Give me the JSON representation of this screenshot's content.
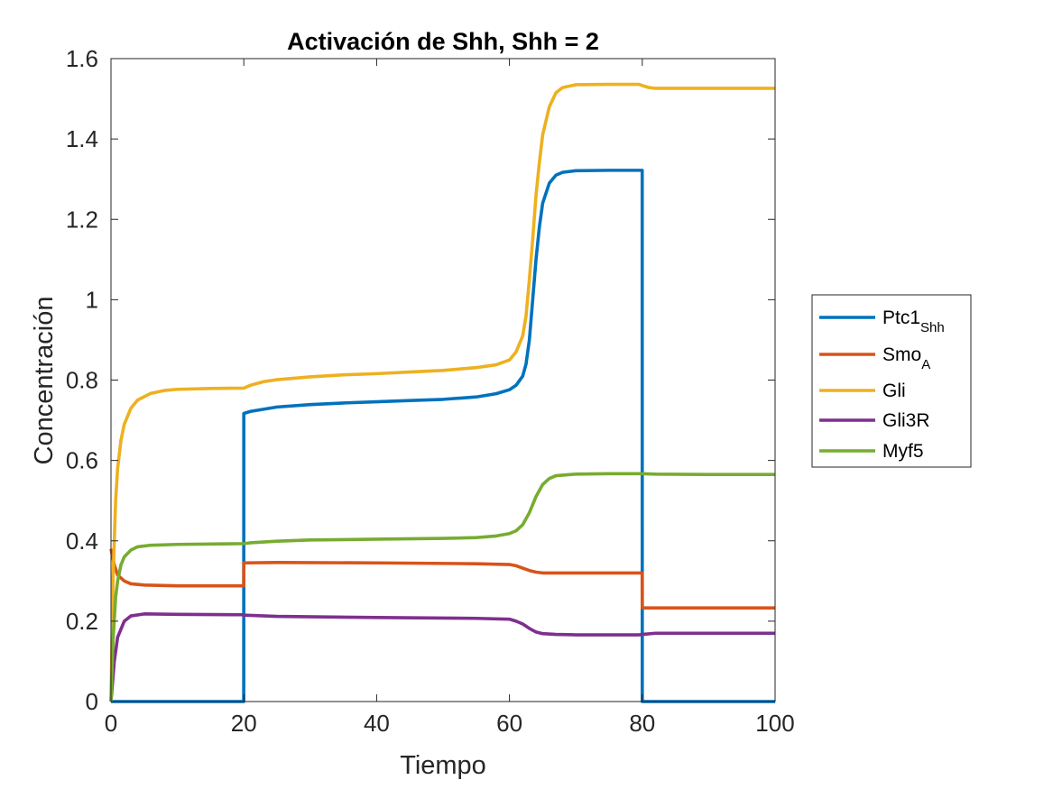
{
  "chart_data": {
    "type": "line",
    "title": "Activación de Shh, Shh = 2",
    "xlabel": "Tiempo",
    "ylabel": "Concentración",
    "xlim": [
      0,
      100
    ],
    "ylim": [
      0,
      1.6
    ],
    "xticks": [
      0,
      20,
      40,
      60,
      80,
      100
    ],
    "xtick_labels": [
      "0",
      "20",
      "40",
      "60",
      "80",
      "100"
    ],
    "yticks": [
      0,
      0.2,
      0.4,
      0.6,
      0.8,
      1,
      1.2,
      1.4,
      1.6
    ],
    "ytick_labels": [
      "0",
      "0.2",
      "0.4",
      "0.6",
      "0.8",
      "1",
      "1.2",
      "1.4",
      "1.6"
    ],
    "grid": false,
    "legend_position": "right",
    "series": [
      {
        "name": "Ptc1",
        "name_sub": "Shh",
        "color": "#0072BD",
        "points": [
          [
            0,
            0
          ],
          [
            19.99,
            0
          ],
          [
            20,
            0.717
          ],
          [
            21,
            0.722
          ],
          [
            25,
            0.733
          ],
          [
            30,
            0.739
          ],
          [
            35,
            0.743
          ],
          [
            40,
            0.746
          ],
          [
            45,
            0.749
          ],
          [
            50,
            0.752
          ],
          [
            55,
            0.758
          ],
          [
            58,
            0.766
          ],
          [
            60,
            0.776
          ],
          [
            61,
            0.787
          ],
          [
            62,
            0.81
          ],
          [
            62.5,
            0.84
          ],
          [
            63,
            0.9
          ],
          [
            63.5,
            1.0
          ],
          [
            64,
            1.1
          ],
          [
            64.5,
            1.18
          ],
          [
            65,
            1.24
          ],
          [
            66,
            1.29
          ],
          [
            67,
            1.31
          ],
          [
            68,
            1.317
          ],
          [
            70,
            1.321
          ],
          [
            75,
            1.322
          ],
          [
            79.99,
            1.322
          ],
          [
            80,
            0
          ],
          [
            100,
            0
          ]
        ]
      },
      {
        "name": "Smo",
        "name_sub": "A",
        "color": "#D95319",
        "points": [
          [
            0,
            0.38
          ],
          [
            0.5,
            0.34
          ],
          [
            1,
            0.315
          ],
          [
            2,
            0.3
          ],
          [
            3,
            0.293
          ],
          [
            5,
            0.29
          ],
          [
            10,
            0.288
          ],
          [
            19.99,
            0.288
          ],
          [
            20,
            0.345
          ],
          [
            25,
            0.346
          ],
          [
            40,
            0.345
          ],
          [
            55,
            0.343
          ],
          [
            60,
            0.341
          ],
          [
            61,
            0.338
          ],
          [
            62,
            0.332
          ],
          [
            63,
            0.326
          ],
          [
            64,
            0.322
          ],
          [
            65,
            0.32
          ],
          [
            70,
            0.32
          ],
          [
            79.99,
            0.32
          ],
          [
            80,
            0.233
          ],
          [
            90,
            0.233
          ],
          [
            100,
            0.233
          ]
        ]
      },
      {
        "name": "Gli",
        "name_sub": "",
        "color": "#EDB120",
        "points": [
          [
            0,
            0
          ],
          [
            0.3,
            0.3
          ],
          [
            0.7,
            0.5
          ],
          [
            1,
            0.58
          ],
          [
            1.5,
            0.65
          ],
          [
            2,
            0.69
          ],
          [
            3,
            0.73
          ],
          [
            4,
            0.75
          ],
          [
            6,
            0.767
          ],
          [
            8,
            0.774
          ],
          [
            10,
            0.777
          ],
          [
            15,
            0.779
          ],
          [
            19.99,
            0.78
          ],
          [
            20,
            0.78
          ],
          [
            21,
            0.787
          ],
          [
            23,
            0.796
          ],
          [
            25,
            0.801
          ],
          [
            30,
            0.808
          ],
          [
            35,
            0.813
          ],
          [
            40,
            0.816
          ],
          [
            45,
            0.82
          ],
          [
            50,
            0.824
          ],
          [
            55,
            0.831
          ],
          [
            58,
            0.838
          ],
          [
            60,
            0.85
          ],
          [
            61,
            0.87
          ],
          [
            62,
            0.91
          ],
          [
            62.5,
            0.96
          ],
          [
            63,
            1.05
          ],
          [
            63.5,
            1.15
          ],
          [
            64,
            1.26
          ],
          [
            64.5,
            1.34
          ],
          [
            65,
            1.41
          ],
          [
            66,
            1.48
          ],
          [
            67,
            1.515
          ],
          [
            68,
            1.528
          ],
          [
            70,
            1.535
          ],
          [
            75,
            1.536
          ],
          [
            79.5,
            1.536
          ],
          [
            80,
            1.533
          ],
          [
            81,
            1.528
          ],
          [
            82,
            1.526
          ],
          [
            90,
            1.526
          ],
          [
            100,
            1.526
          ]
        ]
      },
      {
        "name": "Gli3R",
        "name_sub": "",
        "color": "#7E2F8E",
        "points": [
          [
            0,
            0
          ],
          [
            0.5,
            0.1
          ],
          [
            1,
            0.16
          ],
          [
            2,
            0.2
          ],
          [
            3,
            0.213
          ],
          [
            5,
            0.218
          ],
          [
            10,
            0.217
          ],
          [
            19.99,
            0.216
          ],
          [
            20,
            0.215
          ],
          [
            25,
            0.212
          ],
          [
            40,
            0.209
          ],
          [
            55,
            0.207
          ],
          [
            60,
            0.205
          ],
          [
            61,
            0.2
          ],
          [
            62,
            0.193
          ],
          [
            63,
            0.182
          ],
          [
            64,
            0.173
          ],
          [
            65,
            0.169
          ],
          [
            67,
            0.167
          ],
          [
            70,
            0.166
          ],
          [
            79.5,
            0.166
          ],
          [
            80,
            0.167
          ],
          [
            82,
            0.17
          ],
          [
            90,
            0.17
          ],
          [
            100,
            0.17
          ]
        ]
      },
      {
        "name": "Myf5",
        "name_sub": "",
        "color": "#77AC30",
        "points": [
          [
            0,
            0
          ],
          [
            0.3,
            0.15
          ],
          [
            0.7,
            0.26
          ],
          [
            1,
            0.3
          ],
          [
            1.5,
            0.34
          ],
          [
            2,
            0.36
          ],
          [
            3,
            0.377
          ],
          [
            4,
            0.385
          ],
          [
            6,
            0.389
          ],
          [
            10,
            0.391
          ],
          [
            15,
            0.392
          ],
          [
            19.99,
            0.393
          ],
          [
            20,
            0.393
          ],
          [
            21,
            0.395
          ],
          [
            25,
            0.399
          ],
          [
            30,
            0.402
          ],
          [
            40,
            0.404
          ],
          [
            50,
            0.406
          ],
          [
            55,
            0.408
          ],
          [
            58,
            0.412
          ],
          [
            60,
            0.418
          ],
          [
            61,
            0.425
          ],
          [
            62,
            0.44
          ],
          [
            63,
            0.47
          ],
          [
            64,
            0.51
          ],
          [
            65,
            0.54
          ],
          [
            66,
            0.555
          ],
          [
            67,
            0.562
          ],
          [
            70,
            0.566
          ],
          [
            75,
            0.567
          ],
          [
            79.5,
            0.567
          ],
          [
            80,
            0.567
          ],
          [
            82,
            0.566
          ],
          [
            90,
            0.565
          ],
          [
            100,
            0.565
          ]
        ]
      }
    ]
  }
}
